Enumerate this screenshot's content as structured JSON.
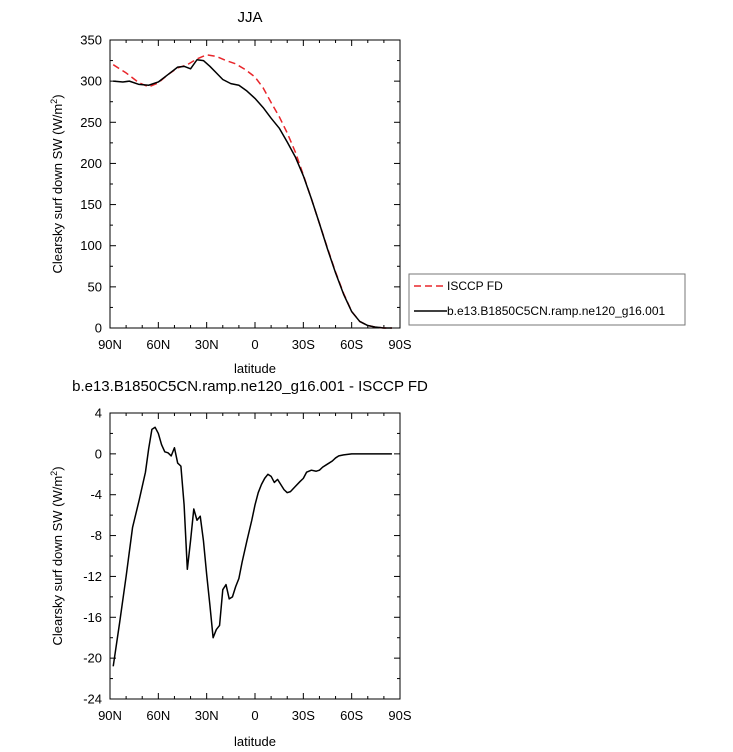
{
  "chart_data": [
    {
      "type": "line",
      "title": "JJA",
      "xlabel": "latitude",
      "ylabel_main": "Clearsky surf down SW (W/m",
      "ylabel_sup": "2",
      "ylabel_close": ")",
      "xlim": [
        90,
        -90
      ],
      "ylim": [
        0,
        350
      ],
      "xticks": [
        {
          "value": 90,
          "label": "90N"
        },
        {
          "value": 60,
          "label": "60N"
        },
        {
          "value": 30,
          "label": "30N"
        },
        {
          "value": 0,
          "label": "0"
        },
        {
          "value": -30,
          "label": "30S"
        },
        {
          "value": -60,
          "label": "60S"
        },
        {
          "value": -90,
          "label": "90S"
        }
      ],
      "yticks": [
        0,
        50,
        100,
        150,
        200,
        250,
        300,
        350
      ],
      "legend_position": "right",
      "series": [
        {
          "name": "ISCCP FD",
          "color": "#e8262b",
          "dash": "dashed",
          "points": [
            [
              88,
              320
            ],
            [
              80,
              310
            ],
            [
              72,
              298
            ],
            [
              66,
              293
            ],
            [
              60,
              298
            ],
            [
              54,
              308
            ],
            [
              48,
              316
            ],
            [
              42,
              320
            ],
            [
              36,
              327
            ],
            [
              30,
              332
            ],
            [
              24,
              330
            ],
            [
              18,
              325
            ],
            [
              12,
              321
            ],
            [
              6,
              314
            ],
            [
              0,
              305
            ],
            [
              -5,
              292
            ],
            [
              -10,
              274
            ],
            [
              -15,
              257
            ],
            [
              -20,
              237
            ],
            [
              -25,
              214
            ],
            [
              -30,
              186
            ],
            [
              -35,
              157
            ],
            [
              -40,
              127
            ],
            [
              -45,
              97
            ],
            [
              -50,
              68
            ],
            [
              -55,
              42
            ],
            [
              -60,
              20
            ],
            [
              -65,
              8
            ],
            [
              -70,
              3
            ],
            [
              -75,
              1
            ],
            [
              -80,
              0
            ],
            [
              -85,
              0
            ]
          ]
        },
        {
          "name": "b.e13.B1850C5CN.ramp.ne120_g16.001",
          "color": "#000000",
          "dash": "solid",
          "points": [
            [
              88,
              300
            ],
            [
              82,
              299
            ],
            [
              78,
              300
            ],
            [
              72,
              296
            ],
            [
              66,
              295
            ],
            [
              60,
              299
            ],
            [
              54,
              308
            ],
            [
              48,
              317
            ],
            [
              44,
              318
            ],
            [
              40,
              315
            ],
            [
              36,
              326
            ],
            [
              32,
              325
            ],
            [
              28,
              318
            ],
            [
              24,
              310
            ],
            [
              20,
              302
            ],
            [
              15,
              297
            ],
            [
              10,
              295
            ],
            [
              5,
              288
            ],
            [
              0,
              279
            ],
            [
              -5,
              268
            ],
            [
              -10,
              255
            ],
            [
              -15,
              243
            ],
            [
              -20,
              226
            ],
            [
              -25,
              208
            ],
            [
              -30,
              185
            ],
            [
              -35,
              157
            ],
            [
              -40,
              127
            ],
            [
              -45,
              96
            ],
            [
              -50,
              67
            ],
            [
              -55,
              41
            ],
            [
              -60,
              20
            ],
            [
              -65,
              8
            ],
            [
              -70,
              3
            ],
            [
              -75,
              1
            ],
            [
              -80,
              0
            ],
            [
              -85,
              0
            ]
          ]
        }
      ]
    },
    {
      "type": "line",
      "title": "b.e13.B1850C5CN.ramp.ne120_g16.001 - ISCCP FD",
      "xlabel": "latitude",
      "ylabel_main": "Clearsky surf down SW (W/m",
      "ylabel_sup": "2",
      "ylabel_close": ")",
      "xlim": [
        90,
        -90
      ],
      "ylim": [
        -24,
        4
      ],
      "xticks": [
        {
          "value": 90,
          "label": "90N"
        },
        {
          "value": 60,
          "label": "60N"
        },
        {
          "value": 30,
          "label": "30N"
        },
        {
          "value": 0,
          "label": "0"
        },
        {
          "value": -30,
          "label": "30S"
        },
        {
          "value": -60,
          "label": "60S"
        },
        {
          "value": -90,
          "label": "90S"
        }
      ],
      "yticks": [
        -24,
        -20,
        -16,
        -12,
        -8,
        -4,
        0,
        4
      ],
      "series": [
        {
          "color": "#000000",
          "dash": "solid",
          "points": [
            [
              88,
              -20.8
            ],
            [
              84,
              -16.5
            ],
            [
              80,
              -12
            ],
            [
              76,
              -7.2
            ],
            [
              72,
              -4.6
            ],
            [
              68,
              -1.8
            ],
            [
              66,
              0.5
            ],
            [
              64,
              2.4
            ],
            [
              62,
              2.6
            ],
            [
              60,
              2.0
            ],
            [
              58,
              0.9
            ],
            [
              56,
              0.2
            ],
            [
              54,
              0.1
            ],
            [
              52,
              -0.2
            ],
            [
              50,
              0.6
            ],
            [
              48,
              -0.9
            ],
            [
              46,
              -1.2
            ],
            [
              44,
              -5
            ],
            [
              42,
              -11.3
            ],
            [
              40,
              -8.5
            ],
            [
              38,
              -5.4
            ],
            [
              36,
              -6.5
            ],
            [
              34,
              -6.1
            ],
            [
              32,
              -8.5
            ],
            [
              30,
              -11.8
            ],
            [
              28,
              -14.8
            ],
            [
              26,
              -18
            ],
            [
              24,
              -17.2
            ],
            [
              22,
              -16.8
            ],
            [
              20,
              -13.3
            ],
            [
              18,
              -12.8
            ],
            [
              16,
              -14.2
            ],
            [
              14,
              -14
            ],
            [
              12,
              -13
            ],
            [
              10,
              -12.2
            ],
            [
              8,
              -10.6
            ],
            [
              5,
              -8.5
            ],
            [
              2,
              -6.5
            ],
            [
              0,
              -5
            ],
            [
              -2,
              -3.8
            ],
            [
              -4,
              -3
            ],
            [
              -6,
              -2.4
            ],
            [
              -8,
              -2
            ],
            [
              -10,
              -2.2
            ],
            [
              -12,
              -2.8
            ],
            [
              -14,
              -2.5
            ],
            [
              -16,
              -3
            ],
            [
              -18,
              -3.5
            ],
            [
              -20,
              -3.8
            ],
            [
              -22,
              -3.7
            ],
            [
              -25,
              -3.2
            ],
            [
              -28,
              -2.7
            ],
            [
              -30,
              -2.4
            ],
            [
              -32,
              -1.8
            ],
            [
              -35,
              -1.6
            ],
            [
              -38,
              -1.7
            ],
            [
              -40,
              -1.6
            ],
            [
              -42,
              -1.3
            ],
            [
              -45,
              -1.0
            ],
            [
              -48,
              -0.7
            ],
            [
              -50,
              -0.4
            ],
            [
              -52,
              -0.2
            ],
            [
              -55,
              -0.1
            ],
            [
              -60,
              0
            ],
            [
              -65,
              0
            ],
            [
              -70,
              0
            ],
            [
              -75,
              0
            ],
            [
              -80,
              0
            ],
            [
              -85,
              0
            ]
          ]
        }
      ]
    }
  ]
}
